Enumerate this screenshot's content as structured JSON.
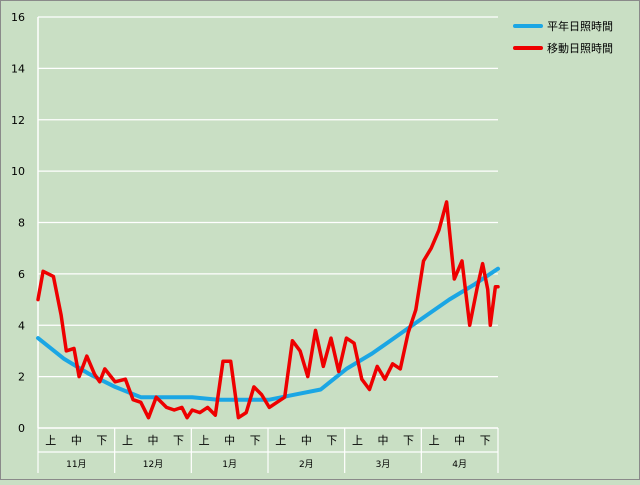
{
  "chart_data": {
    "type": "line",
    "ylim": [
      0,
      16
    ],
    "y_ticks": [
      0,
      2,
      4,
      6,
      8,
      10,
      12,
      14,
      16
    ],
    "grid": true,
    "legend_position": "top-right",
    "months": [
      "11月",
      "12月",
      "1月",
      "2月",
      "3月",
      "4月"
    ],
    "decades": [
      "上",
      "中",
      "下"
    ],
    "x_points": 180,
    "series": [
      {
        "name": "平年日照時間",
        "color": "#1ba6e4",
        "x": [
          0,
          10,
          20,
          30,
          40,
          50,
          60,
          70,
          80,
          90,
          100,
          110,
          120,
          130,
          140,
          150,
          160,
          170,
          179
        ],
        "values": [
          3.5,
          2.7,
          2.1,
          1.6,
          1.2,
          1.2,
          1.2,
          1.1,
          1.1,
          1.1,
          1.3,
          1.5,
          2.3,
          2.9,
          3.6,
          4.3,
          5.0,
          5.6,
          6.2
        ]
      },
      {
        "name": "移動日照時間",
        "color": "#ee0000",
        "x": [
          0,
          2,
          6,
          9,
          11,
          14,
          16,
          19,
          22,
          24,
          26,
          30,
          34,
          37,
          40,
          43,
          46,
          48,
          50,
          53,
          56,
          58,
          60,
          63,
          66,
          69,
          72,
          75,
          78,
          81,
          84,
          87,
          90,
          93,
          96,
          99,
          102,
          105,
          108,
          111,
          114,
          117,
          120,
          123,
          126,
          129,
          132,
          135,
          138,
          141,
          144,
          147,
          150,
          153,
          156,
          159,
          162,
          165,
          168,
          171,
          173,
          175,
          176,
          178,
          179
        ],
        "values": [
          5.0,
          6.1,
          5.9,
          4.4,
          3.0,
          3.1,
          2.0,
          2.8,
          2.1,
          1.8,
          2.3,
          1.8,
          1.9,
          1.1,
          1.0,
          0.4,
          1.2,
          1.0,
          0.8,
          0.7,
          0.8,
          0.4,
          0.7,
          0.6,
          0.8,
          0.5,
          2.6,
          2.6,
          0.4,
          0.6,
          1.6,
          1.3,
          0.8,
          1.0,
          1.2,
          3.4,
          3.0,
          2.0,
          3.8,
          2.4,
          3.5,
          2.2,
          3.5,
          3.3,
          1.9,
          1.5,
          2.4,
          1.9,
          2.5,
          2.3,
          3.7,
          4.6,
          6.5,
          7.0,
          7.7,
          8.8,
          5.8,
          6.5,
          4.0,
          5.5,
          6.4,
          5.4,
          4.0,
          5.5,
          5.5
        ]
      }
    ]
  }
}
